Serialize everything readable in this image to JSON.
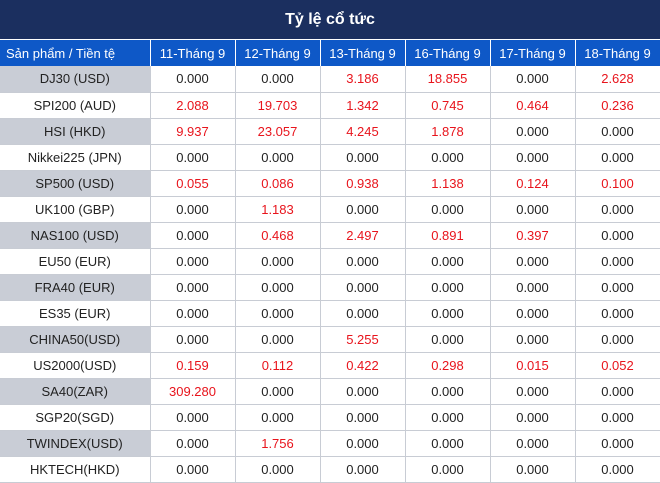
{
  "title": "Tỷ lệ cổ tức",
  "header": {
    "product_col": "Sản phẩm / Tiền tệ",
    "dates": [
      "11-Tháng 9",
      "12-Tháng 9",
      "13-Tháng 9",
      "16-Tháng 9",
      "17-Tháng 9",
      "18-Tháng 9"
    ]
  },
  "colors": {
    "title_bg": "#1b2f5f",
    "header_bg": "#0e58c7",
    "shade": "#c9cdd6",
    "positive": "#e8141c"
  },
  "rows": [
    {
      "product": "DJ30 (USD)",
      "values": [
        "0.000",
        "0.000",
        "3.186",
        "18.855",
        "0.000",
        "2.628"
      ]
    },
    {
      "product": "SPI200 (AUD)",
      "values": [
        "2.088",
        "19.703",
        "1.342",
        "0.745",
        "0.464",
        "0.236"
      ]
    },
    {
      "product": "HSI (HKD)",
      "values": [
        "9.937",
        "23.057",
        "4.245",
        "1.878",
        "0.000",
        "0.000"
      ]
    },
    {
      "product": "Nikkei225 (JPN)",
      "values": [
        "0.000",
        "0.000",
        "0.000",
        "0.000",
        "0.000",
        "0.000"
      ]
    },
    {
      "product": "SP500 (USD)",
      "values": [
        "0.055",
        "0.086",
        "0.938",
        "1.138",
        "0.124",
        "0.100"
      ]
    },
    {
      "product": "UK100 (GBP)",
      "values": [
        "0.000",
        "1.183",
        "0.000",
        "0.000",
        "0.000",
        "0.000"
      ]
    },
    {
      "product": "NAS100 (USD)",
      "values": [
        "0.000",
        "0.468",
        "2.497",
        "0.891",
        "0.397",
        "0.000"
      ]
    },
    {
      "product": "EU50 (EUR)",
      "values": [
        "0.000",
        "0.000",
        "0.000",
        "0.000",
        "0.000",
        "0.000"
      ]
    },
    {
      "product": "FRA40 (EUR)",
      "values": [
        "0.000",
        "0.000",
        "0.000",
        "0.000",
        "0.000",
        "0.000"
      ]
    },
    {
      "product": "ES35 (EUR)",
      "values": [
        "0.000",
        "0.000",
        "0.000",
        "0.000",
        "0.000",
        "0.000"
      ]
    },
    {
      "product": "CHINA50(USD)",
      "values": [
        "0.000",
        "0.000",
        "5.255",
        "0.000",
        "0.000",
        "0.000"
      ]
    },
    {
      "product": "US2000(USD)",
      "values": [
        "0.159",
        "0.112",
        "0.422",
        "0.298",
        "0.015",
        "0.052"
      ]
    },
    {
      "product": "SA40(ZAR)",
      "values": [
        "309.280",
        "0.000",
        "0.000",
        "0.000",
        "0.000",
        "0.000"
      ]
    },
    {
      "product": "SGP20(SGD)",
      "values": [
        "0.000",
        "0.000",
        "0.000",
        "0.000",
        "0.000",
        "0.000"
      ]
    },
    {
      "product": "TWINDEX(USD)",
      "values": [
        "0.000",
        "1.756",
        "0.000",
        "0.000",
        "0.000",
        "0.000"
      ]
    },
    {
      "product": "HKTECH(HKD)",
      "values": [
        "0.000",
        "0.000",
        "0.000",
        "0.000",
        "0.000",
        "0.000"
      ]
    }
  ]
}
